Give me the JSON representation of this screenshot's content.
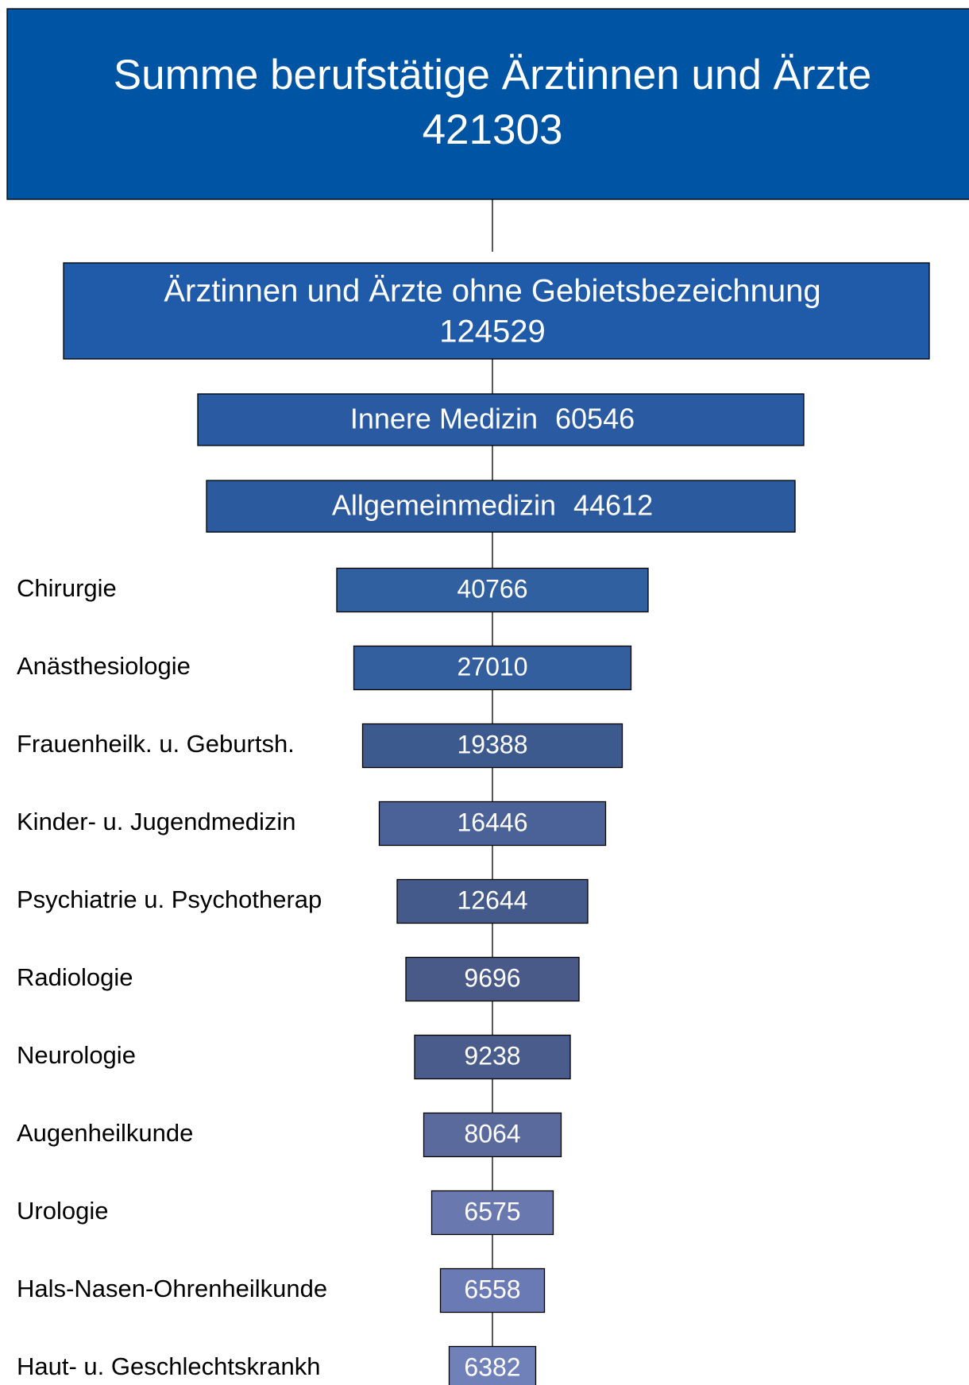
{
  "header": {
    "title": "Summe berufstätige Ärztinnen und Ärzte",
    "value": "421303"
  },
  "groups": [
    {
      "label": "Ärztinnen und Ärzte ohne Gebietsbezeichnung",
      "value": "124529"
    },
    {
      "label": "Innere Medizin",
      "value": "60546"
    },
    {
      "label": "Allgemeinmedizin",
      "value": "44612"
    }
  ],
  "rows": [
    {
      "label": "Chirurgie",
      "value": "40766"
    },
    {
      "label": "Anästhesiologie",
      "value": "27010"
    },
    {
      "label": "Frauenheilk. u. Geburtsh.",
      "value": "19388"
    },
    {
      "label": "Kinder- u. Jugendmedizin",
      "value": "16446"
    },
    {
      "label": "Psychiatrie u. Psychotherap",
      "value": "12644"
    },
    {
      "label": "Radiologie",
      "value": "9696"
    },
    {
      "label": "Neurologie",
      "value": "9238"
    },
    {
      "label": "Augenheilkunde",
      "value": "8064"
    },
    {
      "label": "Urologie",
      "value": "6575"
    },
    {
      "label": "Hals-Nasen-Ohrenheilkunde",
      "value": "6558"
    },
    {
      "label": "Haut- u. Geschlechtskrankh",
      "value": "6382"
    }
  ]
}
